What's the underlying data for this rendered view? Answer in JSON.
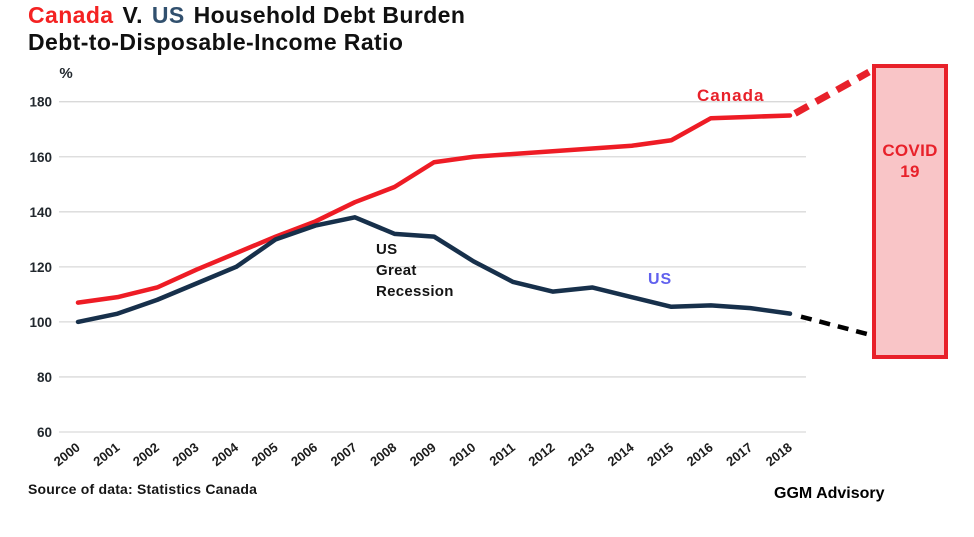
{
  "title": {
    "canada": "Canada",
    "versus": "V.",
    "us": "US",
    "rest": "Household Debt Burden",
    "line2": "Debt-to-Disposable-Income Ratio"
  },
  "chart_data": {
    "type": "line",
    "title": "Canada V. US Household Debt Burden — Debt-to-Disposable-Income Ratio",
    "ylabel": "%",
    "ylim": [
      60,
      185
    ],
    "yticks": [
      180,
      160,
      140,
      120,
      100,
      80,
      60
    ],
    "grid": "horizontal",
    "legend_position": "inline-labels",
    "categories": [
      "2000",
      "2001",
      "2002",
      "2003",
      "2004",
      "2005",
      "2006",
      "2007",
      "2008",
      "2009",
      "2010",
      "2011",
      "2012",
      "2013",
      "2014",
      "2015",
      "2016",
      "2017",
      "2018"
    ],
    "series": [
      {
        "name": "Canada",
        "color": "#ee1c25",
        "values": [
          107,
          109,
          112.5,
          119,
          125,
          131,
          136.5,
          143.5,
          149,
          158,
          160,
          161,
          162,
          163,
          164,
          166,
          174,
          174.5,
          175
        ]
      },
      {
        "name": "US",
        "color": "#17304b",
        "values": [
          100,
          103,
          108,
          114,
          120,
          130,
          135,
          138,
          132,
          131,
          122,
          114.5,
          111,
          112.5,
          109,
          105.5,
          106,
          105,
          103
        ]
      }
    ],
    "annotations": {
      "canada_label": "Canada",
      "us_label": "US",
      "recession": {
        "line1": "US",
        "line2": "Great",
        "line3": "Recession"
      },
      "covid_box": {
        "line1": "COVID",
        "line2": "19",
        "fill": "#f9c5c7",
        "border": "#e8212a"
      },
      "projections": [
        {
          "series": "Canada",
          "style": "dashed",
          "color": "#e8212a",
          "direction": "up-to-covid-box"
        },
        {
          "series": "US",
          "style": "dashed",
          "color": "#000000",
          "direction": "down-to-covid-box"
        }
      ]
    },
    "colors": {
      "gridline": "#d9d9d9",
      "axis_text": "#22282e"
    }
  },
  "footer": {
    "source": "Source of data: Statistics Canada",
    "brand": "GGM Advisory"
  }
}
